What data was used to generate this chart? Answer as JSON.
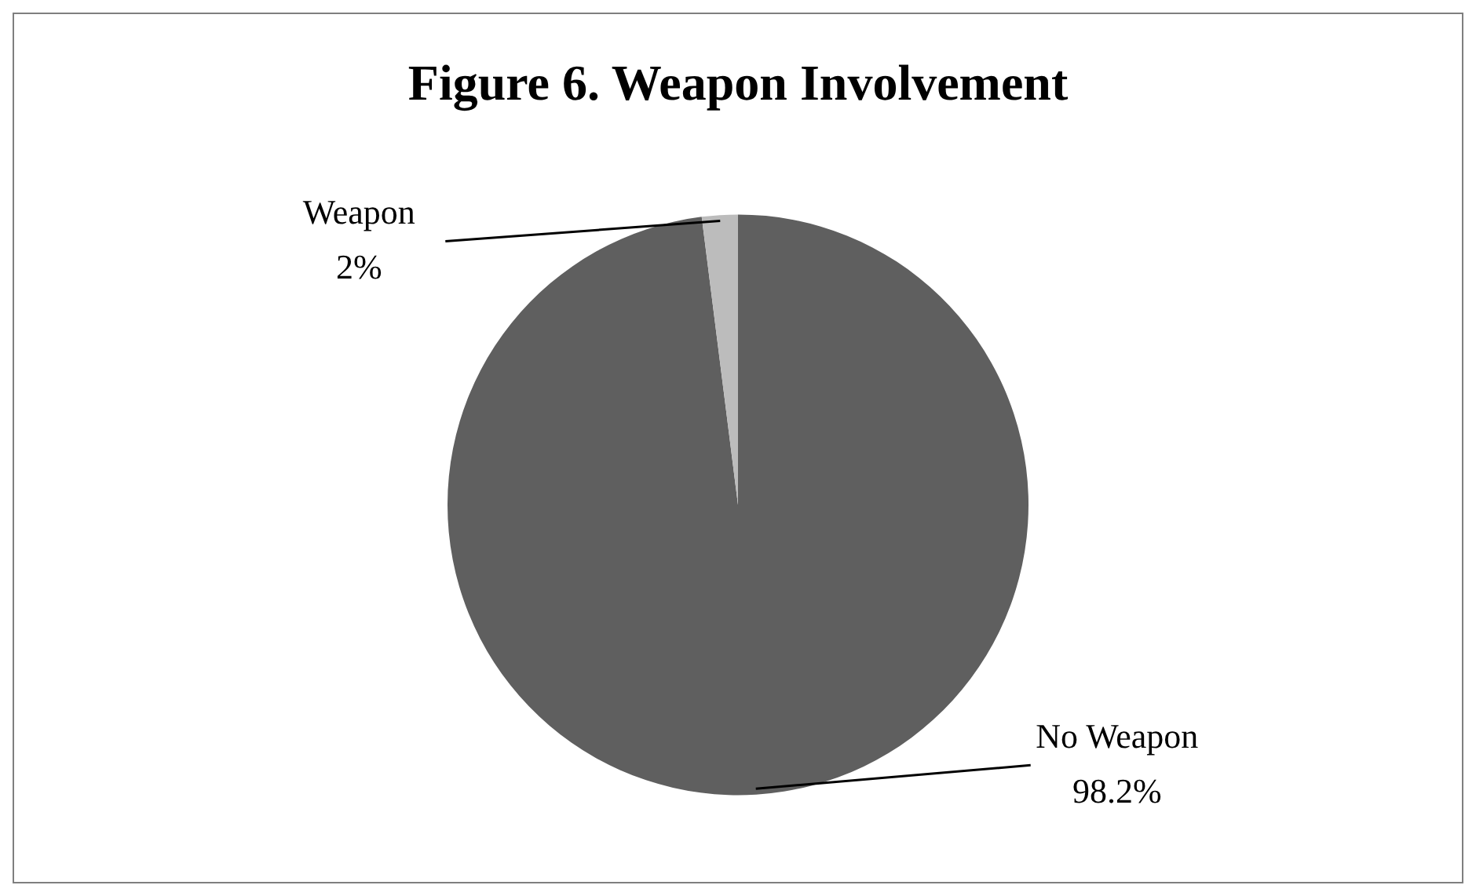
{
  "chart_data": {
    "type": "pie",
    "title": "Figure 6. Weapon Involvement",
    "categories": [
      "No Weapon",
      "Weapon"
    ],
    "values": [
      98.2,
      2
    ],
    "colors": [
      "#5f5f5f",
      "#bcbcbc"
    ],
    "value_labels": [
      "98.2%",
      "2%"
    ],
    "legend": false
  }
}
